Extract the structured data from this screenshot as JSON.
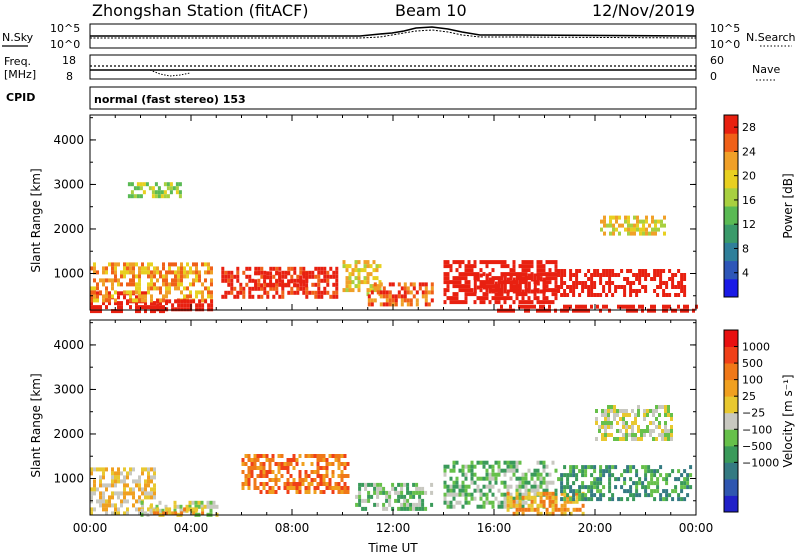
{
  "header": {
    "station": "Zhongshan Station (fitACF)",
    "beam": "Beam 10",
    "date": "12/Nov/2019"
  },
  "top_panels": {
    "nsky_label": "N.Sky",
    "nsearch_label": "N.Search",
    "nsky_ticks": [
      "10^5",
      "10^0"
    ],
    "nsearch_ticks": [
      "10^5",
      "10^0"
    ],
    "freq_label_1": "Freq.",
    "freq_label_2": "[MHz]",
    "freq_ticks": [
      "18",
      "8"
    ],
    "nave_label": "Nave",
    "nave_ticks": [
      "60",
      "0"
    ],
    "cpid_label": "CPID",
    "cpid_text": "normal (fast stereo) 153"
  },
  "chart_data": [
    {
      "type": "heatmap",
      "title": "",
      "xlabel": "Time UT",
      "ylabel": "Slant Range [km]",
      "xlim": [
        0,
        24
      ],
      "ylim": [
        180,
        4560
      ],
      "x_tick_labels": [
        "00:00",
        "04:00",
        "08:00",
        "12:00",
        "16:00",
        "20:00",
        "00:00"
      ],
      "y_tick_labels": [
        "1000",
        "2000",
        "3000",
        "4000"
      ],
      "y_ticks": [
        1000,
        2000,
        3000,
        4000
      ],
      "colorbar": {
        "label": "Power [dB]",
        "range": [
          0,
          30
        ],
        "ticks": [
          "4",
          "8",
          "12",
          "16",
          "20",
          "24",
          "28"
        ],
        "tick_values": [
          4,
          8,
          12,
          16,
          20,
          24,
          28
        ],
        "colors": [
          "#1a1ae6",
          "#2e56b8",
          "#2f7f9a",
          "#3a9a6a",
          "#5aba54",
          "#a8d040",
          "#e8d020",
          "#f0a028",
          "#f06018",
          "#e82010"
        ]
      },
      "regions": [
        {
          "t": [
            0.0,
            3.0
          ],
          "r": [
            200,
            380
          ],
          "v": 28
        },
        {
          "t": [
            0.0,
            2.2
          ],
          "r": [
            380,
            600
          ],
          "v": 16
        },
        {
          "t": [
            0.0,
            4.8
          ],
          "r": [
            380,
            1250
          ],
          "v": 7
        },
        {
          "t": [
            2.5,
            4.8
          ],
          "r": [
            200,
            420
          ],
          "v": 24
        },
        {
          "t": [
            5.2,
            9.8
          ],
          "r": [
            500,
            1150
          ],
          "v": 9
        },
        {
          "t": [
            6.5,
            8.6
          ],
          "r": [
            700,
            1050
          ],
          "v": 15
        },
        {
          "t": [
            10.0,
            11.5
          ],
          "r": [
            500,
            1300
          ],
          "v": 6
        },
        {
          "t": [
            11.0,
            13.5
          ],
          "r": [
            300,
            800
          ],
          "v": 8
        },
        {
          "t": [
            14.0,
            18.5
          ],
          "r": [
            400,
            1300
          ],
          "v": 12
        },
        {
          "t": [
            15.2,
            18.0
          ],
          "r": [
            600,
            1000
          ],
          "v": 27
        },
        {
          "t": [
            18.5,
            23.5
          ],
          "r": [
            500,
            1100
          ],
          "v": 11
        },
        {
          "t": [
            16.0,
            24.0
          ],
          "r": [
            200,
            300
          ],
          "v": 29
        },
        {
          "t": [
            20.2,
            22.8
          ],
          "r": [
            1900,
            2300
          ],
          "v": 6
        },
        {
          "t": [
            1.5,
            3.8
          ],
          "r": [
            2700,
            3050
          ],
          "v": 5
        }
      ]
    },
    {
      "type": "heatmap",
      "title": "",
      "xlabel": "Time UT",
      "ylabel": "Slant Range [km]",
      "xlim": [
        0,
        24
      ],
      "ylim": [
        180,
        4560
      ],
      "x_tick_labels": [
        "00:00",
        "04:00",
        "08:00",
        "12:00",
        "16:00",
        "20:00",
        "00:00"
      ],
      "y_tick_labels": [
        "1000",
        "2000",
        "3000",
        "4000"
      ],
      "y_ticks": [
        1000,
        2000,
        3000,
        4000
      ],
      "colorbar": {
        "label": "Velocity [m s⁻¹]",
        "range": [
          -1200,
          1200
        ],
        "ticks": [
          "1000",
          "500",
          "100",
          "25",
          "−25",
          "−100",
          "−500",
          "−1000"
        ],
        "colors": [
          "#2020c8",
          "#2f56b0",
          "#347a82",
          "#3a9a5a",
          "#66c04a",
          "#c8c8c0",
          "#e8c830",
          "#f0a020",
          "#f07818",
          "#f04018",
          "#e81010"
        ]
      },
      "regions": [
        {
          "t": [
            0.0,
            2.5
          ],
          "r": [
            200,
            1250
          ],
          "v": 6
        },
        {
          "t": [
            2.0,
            5.0
          ],
          "r": [
            200,
            500
          ],
          "v": 5
        },
        {
          "t": [
            2.5,
            4.5
          ],
          "r": [
            200,
            350
          ],
          "v": 7
        },
        {
          "t": [
            6.0,
            10.2
          ],
          "r": [
            700,
            1550
          ],
          "v": 8
        },
        {
          "t": [
            10.5,
            13.5
          ],
          "r": [
            300,
            900
          ],
          "v": 4
        },
        {
          "t": [
            14.0,
            18.5
          ],
          "r": [
            400,
            1400
          ],
          "v": 4
        },
        {
          "t": [
            16.5,
            19.5
          ],
          "r": [
            200,
            700
          ],
          "v": 7
        },
        {
          "t": [
            18.5,
            23.8
          ],
          "r": [
            500,
            1300
          ],
          "v": 3
        },
        {
          "t": [
            20.0,
            23.0
          ],
          "r": [
            1900,
            2650
          ],
          "v": 5
        }
      ]
    }
  ]
}
